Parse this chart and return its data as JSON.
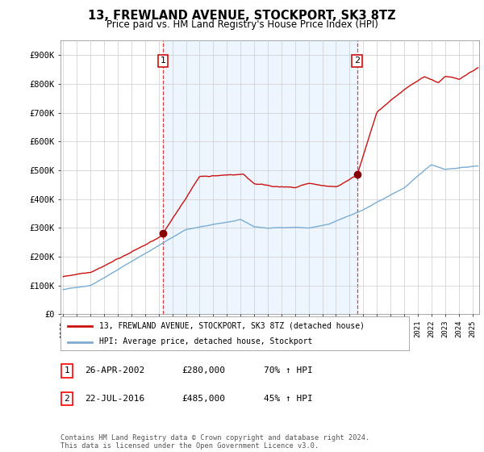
{
  "title": "13, FREWLAND AVENUE, STOCKPORT, SK3 8TZ",
  "subtitle": "Price paid vs. HM Land Registry's House Price Index (HPI)",
  "ylabel_ticks": [
    "£0",
    "£100K",
    "£200K",
    "£300K",
    "£400K",
    "£500K",
    "£600K",
    "£700K",
    "£800K",
    "£900K"
  ],
  "ytick_values": [
    0,
    100000,
    200000,
    300000,
    400000,
    500000,
    600000,
    700000,
    800000,
    900000
  ],
  "ylim": [
    0,
    950000
  ],
  "xlim_start": 1994.8,
  "xlim_end": 2025.5,
  "hpi_color": "#7aadd4",
  "property_color": "#cc1111",
  "sale1_x": 2002.32,
  "sale1_y": 280000,
  "sale2_x": 2016.55,
  "sale2_y": 485000,
  "fill_color": "#ddeeff",
  "fill_alpha": 0.5,
  "legend_property": "13, FREWLAND AVENUE, STOCKPORT, SK3 8TZ (detached house)",
  "legend_hpi": "HPI: Average price, detached house, Stockport",
  "table_row1_num": "1",
  "table_row1_date": "26-APR-2002",
  "table_row1_price": "£280,000",
  "table_row1_hpi": "70% ↑ HPI",
  "table_row2_num": "2",
  "table_row2_date": "22-JUL-2016",
  "table_row2_price": "£485,000",
  "table_row2_hpi": "45% ↑ HPI",
  "footnote": "Contains HM Land Registry data © Crown copyright and database right 2024.\nThis data is licensed under the Open Government Licence v3.0.",
  "grid_color": "#cccccc",
  "background_color": "#ffffff"
}
